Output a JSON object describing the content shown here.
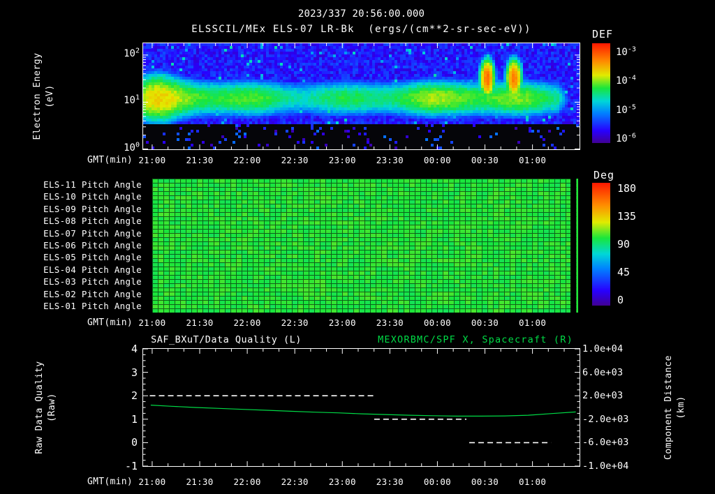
{
  "header": {
    "datetime": "2023/337 20:56:00.000"
  },
  "time_axis": {
    "label": "GMT(min)",
    "tick_labels": [
      "21:00",
      "21:30",
      "22:00",
      "22:30",
      "23:00",
      "23:30",
      "00:00",
      "00:30",
      "01:00"
    ],
    "tick_hours": [
      0.095,
      0.595,
      1.095,
      1.595,
      2.095,
      2.595,
      3.095,
      3.595,
      4.095
    ],
    "range_hours": [
      0,
      4.59
    ]
  },
  "colors": {
    "foreground": "#ffffff",
    "background": "#000000",
    "accent_green": "#00db46"
  },
  "chart_data": [
    {
      "type": "heatmap",
      "id": "energy-spectrogram",
      "title": "ELSSCIL/MEx ELS-07 LR-Bk  (ergs/(cm**2-sr-sec-eV))",
      "ylabel_lines": [
        "Electron Energy",
        "(eV)"
      ],
      "yscale": "log",
      "ylim_eV": [
        1,
        178
      ],
      "yticks": [
        {
          "base": "10",
          "exp": "2",
          "log": 2
        },
        {
          "base": "10",
          "exp": "1",
          "log": 1
        },
        {
          "base": "10",
          "exp": "0",
          "log": 0
        }
      ],
      "xlabel": "GMT(min)",
      "colorbar": {
        "title": "DEF",
        "units": "ergs/(cm**2-sr-sec-eV)",
        "ticks": [
          {
            "base": "10",
            "exp": "-3",
            "log": -3
          },
          {
            "base": "10",
            "exp": "-4",
            "log": -4
          },
          {
            "base": "10",
            "exp": "-5",
            "log": -5
          },
          {
            "base": "10",
            "exp": "-6",
            "log": -6
          }
        ],
        "log_range": [
          -6.1,
          -2.64
        ]
      },
      "features": {
        "background_log_flux": -5.85,
        "band_center_eV": 12,
        "band_core_log_flux": -4.2,
        "band_sigma_decades": 0.33,
        "low_energy_cutoff_eV": 3.2,
        "bursts": [
          {
            "center_hours": 3.62,
            "sigma_hours": 0.065,
            "center_eV": 32,
            "sigma_decades": 0.34,
            "peak_log_flux": -3.1
          },
          {
            "center_hours": 3.9,
            "sigma_hours": 0.07,
            "center_eV": 32,
            "sigma_decades": 0.34,
            "peak_log_flux": -3.15
          }
        ],
        "fade_after_hours": 4.37,
        "noise_seed": 1337
      }
    },
    {
      "type": "heatmap",
      "id": "pitch-angle",
      "rows": [
        "ELS-11 Pitch Angle",
        "ELS-10 Pitch Angle",
        "ELS-09 Pitch Angle",
        "ELS-08 Pitch Angle",
        "ELS-07 Pitch Angle",
        "ELS-06 Pitch Angle",
        "ELS-05 Pitch Angle",
        "ELS-04 Pitch Angle",
        "ELS-03 Pitch Angle",
        "ELS-02 Pitch Angle",
        "ELS-01 Pitch Angle"
      ],
      "colorbar": {
        "title": "Deg",
        "ticks": [
          "180",
          "135",
          "90",
          "45",
          "0"
        ],
        "range": [
          0,
          180
        ]
      },
      "value_deg_mean": 100,
      "value_deg_jitter": 5,
      "data_gap_fraction": [
        0.982,
        0.996
      ]
    },
    {
      "type": "line",
      "id": "quality-and-distance",
      "title_left": "SAF_BXuT/Data Quality (L)",
      "title_right": "MEXORBMC/SPF X, Spacecraft (R)",
      "ylabel_left_lines": [
        "Raw Data Quality",
        "(Raw)"
      ],
      "ylabel_right_lines": [
        "Component Distance",
        "(km)"
      ],
      "yticks_left": [
        "4",
        "3",
        "2",
        "1",
        "0",
        "-1"
      ],
      "ylim_left": [
        -1,
        4
      ],
      "yticks_right": [
        "1.0e+04",
        "6.0e+03",
        "2.0e+03",
        "-2.0e+03",
        "-6.0e+03",
        "-1.0e+04"
      ],
      "ylim_right": [
        -10000,
        10000
      ],
      "xlabel": "GMT(min)",
      "series": [
        {
          "name": "SAF_BXuT/Data Quality",
          "axis": "left",
          "style": "dashed",
          "color": "#ffffff",
          "segments": [
            {
              "value": 2,
              "start_hours": 0.07,
              "end_hours": 2.43
            },
            {
              "value": 1,
              "start_hours": 2.43,
              "end_hours": 3.4
            },
            {
              "value": 0,
              "start_hours": 3.43,
              "end_hours": 4.29
            }
          ]
        },
        {
          "name": "MEXORBMC/SPF X, Spacecraft",
          "axis": "right",
          "style": "solid",
          "color": "#00db46",
          "t_hours": [
            0.08,
            0.3,
            0.55,
            0.8,
            1.05,
            1.3,
            1.55,
            1.8,
            2.05,
            2.3,
            2.55,
            2.8,
            3.05,
            3.3,
            3.55,
            3.8,
            4.05,
            4.3,
            4.55
          ],
          "km": [
            400,
            200,
            0,
            -160,
            -320,
            -480,
            -640,
            -800,
            -920,
            -1080,
            -1200,
            -1320,
            -1400,
            -1480,
            -1480,
            -1440,
            -1320,
            -1040,
            -760
          ]
        }
      ]
    }
  ]
}
